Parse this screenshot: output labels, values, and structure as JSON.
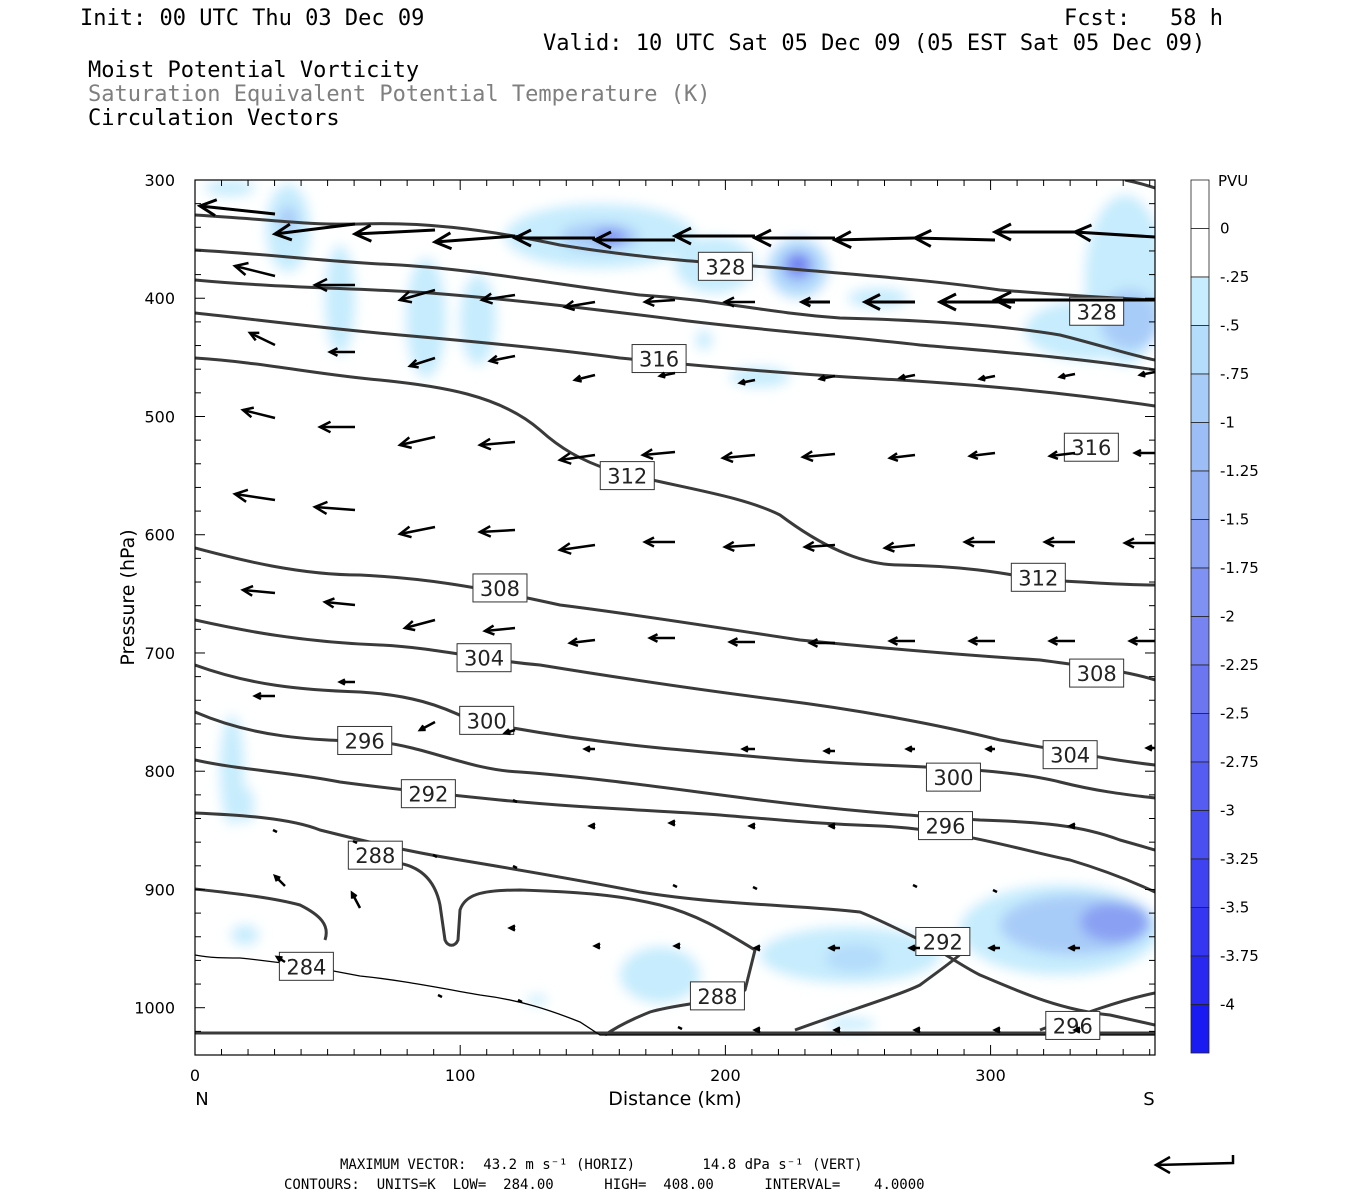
{
  "header": {
    "init": "Init: 00 UTC Thu 03 Dec 09",
    "fcst": "Fcst:   58 h",
    "valid": "Valid: 10 UTC Sat 05 Dec 09 (05 EST Sat 05 Dec 09)",
    "field1": "Moist Potential Vorticity",
    "field2": "Saturation Equivalent Potential Temperature (K)",
    "field3": "Circulation Vectors"
  },
  "footer": {
    "max_vector": "MAXIMUM VECTOR:  43.2 m s⁻¹ (HORIZ)        14.8 dPa s⁻¹ (VERT)",
    "contours": "CONTOURS:  UNITS=K  LOW=  284.00      HIGH=  408.00      INTERVAL=    4.0000"
  },
  "chart_data": {
    "type": "contour",
    "title": "Moist Potential Vorticity; Saturation Equivalent Potential Temperature (K); Circulation Vectors",
    "xlabel": "Distance (km)",
    "ylabel": "Pressure (hPa)",
    "xlim": [
      0,
      362
    ],
    "ylim": [
      1040,
      300
    ],
    "x_ticks": [
      0,
      100,
      200,
      300
    ],
    "y_ticks": [
      300,
      400,
      500,
      600,
      700,
      800,
      900,
      1000
    ],
    "x_end_labels": {
      "left": "N",
      "right": "S"
    },
    "colorbar": {
      "unit": "PVU",
      "labels": [
        "0",
        "-.25",
        "-.5",
        "-.75",
        "-1",
        "-1.25",
        "-1.5",
        "-1.75",
        "-2",
        "-2.25",
        "-2.5",
        "-2.75",
        "-3",
        "-3.25",
        "-3.5",
        "-3.75",
        "-4"
      ],
      "colors": [
        "#ffffff",
        "#ffffff",
        "#c6ecfd",
        "#b4dcfb",
        "#a8ccf8",
        "#9cbdf6",
        "#94b0f5",
        "#8aa0f3",
        "#7f91f2",
        "#7683f1",
        "#6c76f1",
        "#6069f1",
        "#555cf1",
        "#4a4ff1",
        "#3f42f1",
        "#3436f1",
        "#2828f1",
        "#1a1af2"
      ]
    },
    "contour_labels": [
      {
        "x": 200,
        "p": 373,
        "v": "328"
      },
      {
        "x": 340,
        "p": 411,
        "v": "328"
      },
      {
        "x": 175,
        "p": 451,
        "v": "316"
      },
      {
        "x": 338,
        "p": 526,
        "v": "316"
      },
      {
        "x": 163,
        "p": 550,
        "v": "312"
      },
      {
        "x": 318,
        "p": 636,
        "v": "312"
      },
      {
        "x": 115,
        "p": 645,
        "v": "308"
      },
      {
        "x": 340,
        "p": 717,
        "v": "308"
      },
      {
        "x": 109,
        "p": 704,
        "v": "304"
      },
      {
        "x": 330,
        "p": 786,
        "v": "304"
      },
      {
        "x": 110,
        "p": 757,
        "v": "300"
      },
      {
        "x": 286,
        "p": 805,
        "v": "300"
      },
      {
        "x": 64,
        "p": 774,
        "v": "296"
      },
      {
        "x": 283,
        "p": 846,
        "v": "296"
      },
      {
        "x": 331,
        "p": 1015,
        "v": "296"
      },
      {
        "x": 88,
        "p": 819,
        "v": "292"
      },
      {
        "x": 282,
        "p": 944,
        "v": "292"
      },
      {
        "x": 68,
        "p": 871,
        "v": "288"
      },
      {
        "x": 197,
        "p": 990,
        "v": "288"
      },
      {
        "x": 42,
        "p": 965,
        "v": "284"
      }
    ]
  }
}
